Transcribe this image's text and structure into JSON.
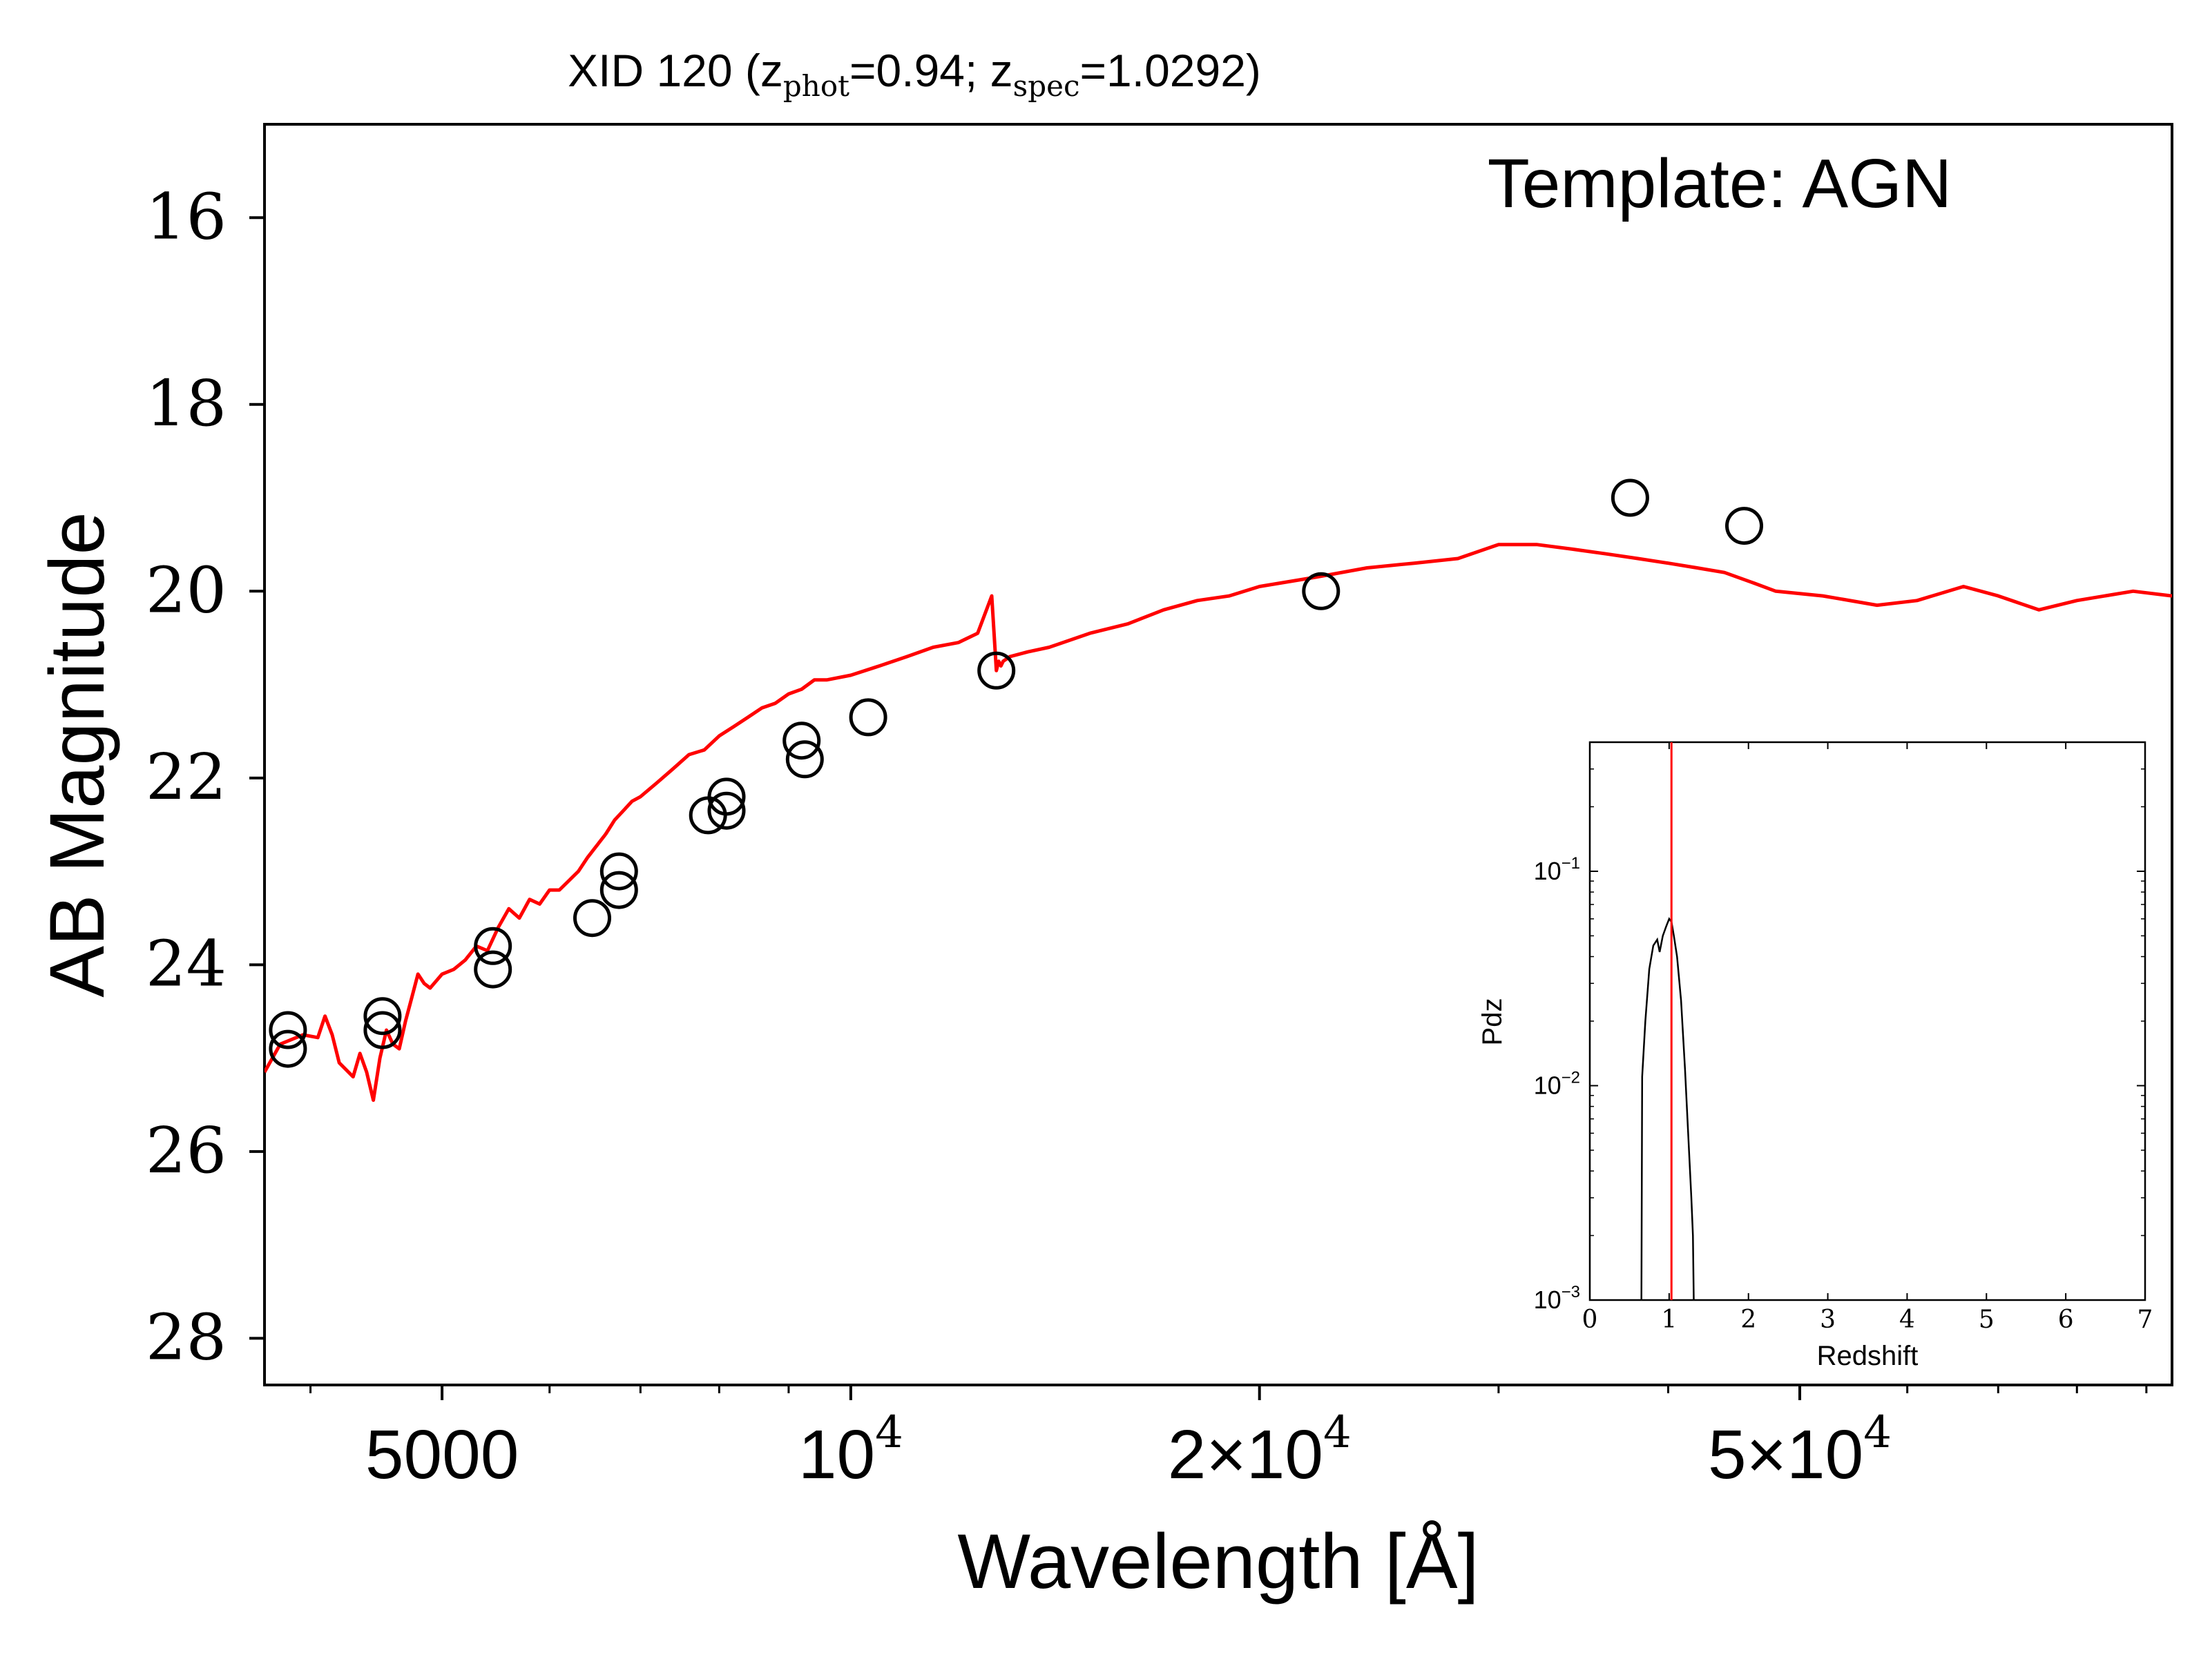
{
  "chart_data": [
    {
      "type": "line",
      "title": {
        "prefix": "XID 120 (z",
        "sub1": "phot",
        "mid": "=0.94; z",
        "sub2": "spec",
        "suffix": "=1.0292)"
      },
      "annotation": "Template: AGN",
      "xlabel": "Wavelength [Å]",
      "ylabel": "AB Magnitude",
      "xscale": "log",
      "xlim": [
        3700,
        94000
      ],
      "ylim": [
        28.5,
        15.0
      ],
      "y_inverted": true,
      "x_ticks": [
        {
          "value": 5000,
          "base": "5000",
          "exp": ""
        },
        {
          "value": 10000,
          "base": "10",
          "exp": "4"
        },
        {
          "value": 20000,
          "base": "2×10",
          "exp": "4"
        },
        {
          "value": 50000,
          "base": "5×10",
          "exp": "4"
        }
      ],
      "y_ticks": [
        16,
        18,
        20,
        22,
        24,
        26,
        28
      ],
      "colors": {
        "template": "#ff0000",
        "points": "#000000"
      },
      "series": [
        {
          "kind": "line",
          "color": "#ff0000",
          "x": [
            3700,
            3800,
            3950,
            4050,
            4100,
            4150,
            4200,
            4300,
            4350,
            4400,
            4450,
            4500,
            4550,
            4600,
            4650,
            4700,
            4750,
            4800,
            4850,
            4900,
            5000,
            5100,
            5200,
            5300,
            5400,
            5500,
            5600,
            5700,
            5800,
            5900,
            6000,
            6100,
            6200,
            6300,
            6400,
            6600,
            6700,
            6800,
            6900,
            7000,
            7200,
            7400,
            7600,
            7800,
            8000,
            8200,
            8400,
            8600,
            8800,
            9000,
            9200,
            9400,
            9600,
            10000,
            10500,
            11000,
            11500,
            12000,
            12400,
            12700,
            12800,
            12850,
            12900,
            12950,
            13100,
            13500,
            14000,
            15000,
            16000,
            17000,
            18000,
            19000,
            20000,
            22000,
            24000,
            26000,
            28000,
            30000,
            32000,
            34000,
            36000,
            38000,
            40000,
            42000,
            44000,
            46000,
            48000,
            52000,
            57000,
            61000,
            66000,
            70000,
            75000,
            80000,
            88000,
            94000
          ],
          "y": [
            25.15,
            24.85,
            24.75,
            24.78,
            24.55,
            24.75,
            25.05,
            25.2,
            24.95,
            25.15,
            25.45,
            25.0,
            24.7,
            24.85,
            24.9,
            24.6,
            24.35,
            24.1,
            24.2,
            24.25,
            24.1,
            24.05,
            23.95,
            23.8,
            23.85,
            23.6,
            23.4,
            23.5,
            23.3,
            23.35,
            23.2,
            23.2,
            23.1,
            23.0,
            22.85,
            22.6,
            22.45,
            22.35,
            22.25,
            22.2,
            22.05,
            21.9,
            21.75,
            21.7,
            21.55,
            21.45,
            21.35,
            21.25,
            21.2,
            21.1,
            21.05,
            20.95,
            20.95,
            20.9,
            20.8,
            20.7,
            20.6,
            20.55,
            20.45,
            20.05,
            20.85,
            20.75,
            20.8,
            20.75,
            20.7,
            20.65,
            20.6,
            20.45,
            20.35,
            20.2,
            20.1,
            20.05,
            19.95,
            19.85,
            19.75,
            19.7,
            19.65,
            19.5,
            19.5,
            19.55,
            19.6,
            19.65,
            19.7,
            19.75,
            19.8,
            19.9,
            20.0,
            20.05,
            20.15,
            20.1,
            19.95,
            20.05,
            20.2,
            20.1,
            20.0,
            20.05
          ]
        },
        {
          "kind": "scatter",
          "marker": "open-circle",
          "color": "#000000",
          "x": [
            3850,
            3850,
            4520,
            4520,
            5450,
            5450,
            6450,
            6750,
            6750,
            7850,
            8100,
            8100,
            9200,
            9250,
            10300,
            12800,
            22200,
            37500,
            45500
          ],
          "y": [
            24.7,
            24.9,
            24.55,
            24.7,
            23.8,
            24.05,
            23.5,
            23.0,
            23.2,
            22.4,
            22.2,
            22.35,
            21.6,
            21.8,
            21.35,
            20.85,
            20.0,
            19.0,
            19.3
          ]
        }
      ]
    },
    {
      "type": "line",
      "role": "inset",
      "xlabel": "Redshift",
      "ylabel": "Pdz",
      "yscale": "log",
      "xlim": [
        0,
        7
      ],
      "ylim": [
        0.001,
        0.4
      ],
      "x_ticks": [
        0,
        1,
        2,
        3,
        4,
        5,
        6,
        7
      ],
      "y_ticks": [
        {
          "value": 0.1,
          "base": "10",
          "exp": "−1"
        },
        {
          "value": 0.01,
          "base": "10",
          "exp": "−2"
        },
        {
          "value": 0.001,
          "base": "10",
          "exp": "−3"
        }
      ],
      "vline": {
        "x": 1.0292,
        "color": "#ff0000"
      },
      "series": [
        {
          "kind": "line",
          "color": "#000000",
          "x": [
            0.65,
            0.66,
            0.7,
            0.75,
            0.8,
            0.85,
            0.88,
            0.92,
            0.96,
            1.0,
            1.03,
            1.06,
            1.1,
            1.15,
            1.2,
            1.25,
            1.28,
            1.3,
            1.31
          ],
          "y": [
            0.001,
            0.011,
            0.02,
            0.035,
            0.045,
            0.048,
            0.042,
            0.05,
            0.055,
            0.06,
            0.058,
            0.05,
            0.04,
            0.025,
            0.012,
            0.005,
            0.003,
            0.002,
            0.001
          ]
        }
      ]
    }
  ]
}
